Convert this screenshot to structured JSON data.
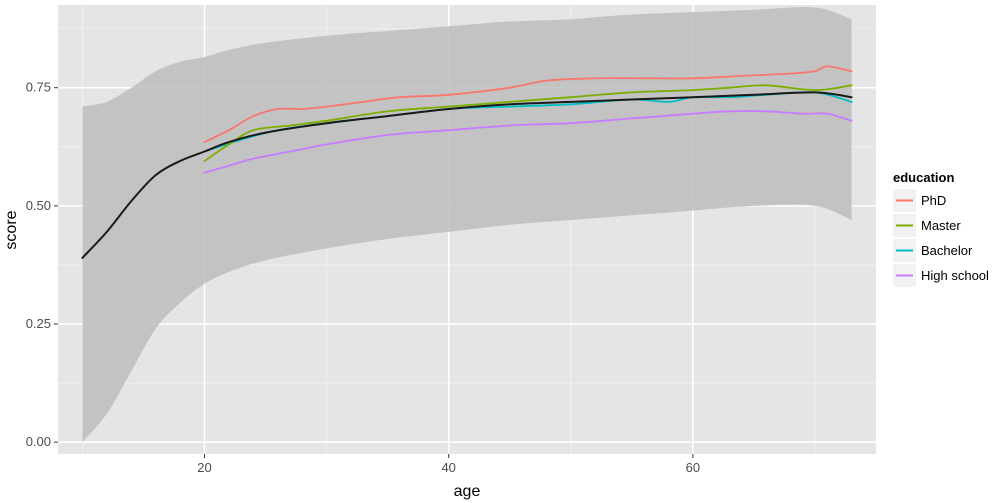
{
  "chart_data": {
    "type": "line",
    "xlabel": "age",
    "ylabel": "score",
    "xlim": [
      8,
      75
    ],
    "ylim": [
      -0.025,
      0.925
    ],
    "x_ticks": [
      20,
      40,
      60
    ],
    "x_tick_labels": [
      "20",
      "40",
      "60"
    ],
    "y_ticks": [
      0.0,
      0.25,
      0.5,
      0.75
    ],
    "y_tick_labels": [
      "0.00",
      "0.25",
      "0.50",
      "0.75"
    ],
    "grid": true,
    "legend": {
      "title": "education",
      "position": "right",
      "entries": [
        "PhD",
        "Master",
        "Bachelor",
        "High school"
      ]
    },
    "colors": {
      "panel": "#e5e5e5",
      "band": "#bdbdbd",
      "overall": "#1a1a1a",
      "PhD": "#f8766d",
      "Master": "#7cae00",
      "Bachelor": "#00bfc4",
      "High school": "#c77cff"
    },
    "smooth_band": {
      "x": [
        10,
        12,
        14,
        16,
        18,
        20,
        22,
        25,
        30,
        35,
        40,
        45,
        50,
        55,
        60,
        65,
        70,
        73
      ],
      "upper": [
        0.71,
        0.72,
        0.75,
        0.785,
        0.805,
        0.815,
        0.83,
        0.845,
        0.86,
        0.87,
        0.88,
        0.89,
        0.895,
        0.905,
        0.91,
        0.915,
        0.92,
        0.895
      ],
      "lower": [
        0.0,
        0.06,
        0.15,
        0.24,
        0.295,
        0.335,
        0.36,
        0.385,
        0.41,
        0.43,
        0.445,
        0.46,
        0.47,
        0.48,
        0.49,
        0.5,
        0.5,
        0.47
      ]
    },
    "series": [
      {
        "name": "overall",
        "x": [
          10,
          12,
          14,
          16,
          18,
          20,
          22,
          25,
          30,
          35,
          40,
          45,
          50,
          55,
          60,
          65,
          70,
          73
        ],
        "values": [
          0.39,
          0.445,
          0.51,
          0.565,
          0.595,
          0.615,
          0.635,
          0.655,
          0.675,
          0.69,
          0.705,
          0.715,
          0.72,
          0.725,
          0.73,
          0.735,
          0.74,
          0.73
        ]
      },
      {
        "name": "PhD",
        "x": [
          20,
          22,
          24,
          26,
          28,
          30,
          33,
          36,
          40,
          45,
          48,
          52,
          56,
          60,
          64,
          68,
          70,
          71,
          73
        ],
        "values": [
          0.635,
          0.66,
          0.69,
          0.705,
          0.705,
          0.71,
          0.72,
          0.73,
          0.735,
          0.75,
          0.765,
          0.77,
          0.77,
          0.77,
          0.775,
          0.78,
          0.785,
          0.795,
          0.785
        ]
      },
      {
        "name": "Master",
        "x": [
          20,
          22,
          24,
          27,
          30,
          35,
          40,
          45,
          50,
          55,
          60,
          63,
          66,
          70,
          73
        ],
        "values": [
          0.595,
          0.63,
          0.66,
          0.67,
          0.68,
          0.7,
          0.71,
          0.72,
          0.73,
          0.74,
          0.745,
          0.75,
          0.755,
          0.745,
          0.755
        ]
      },
      {
        "name": "Bachelor",
        "x": [
          20,
          23,
          26,
          30,
          35,
          40,
          45,
          50,
          55,
          58,
          60,
          63,
          66,
          70,
          73
        ],
        "values": [
          0.615,
          0.64,
          0.66,
          0.675,
          0.69,
          0.705,
          0.71,
          0.715,
          0.725,
          0.72,
          0.73,
          0.73,
          0.735,
          0.74,
          0.72
        ]
      },
      {
        "name": "High school",
        "x": [
          20,
          22,
          24,
          27,
          30,
          35,
          40,
          45,
          50,
          55,
          60,
          63,
          66,
          69,
          71,
          73
        ],
        "values": [
          0.57,
          0.585,
          0.6,
          0.615,
          0.63,
          0.65,
          0.66,
          0.67,
          0.675,
          0.685,
          0.695,
          0.7,
          0.7,
          0.695,
          0.695,
          0.68
        ]
      }
    ]
  }
}
